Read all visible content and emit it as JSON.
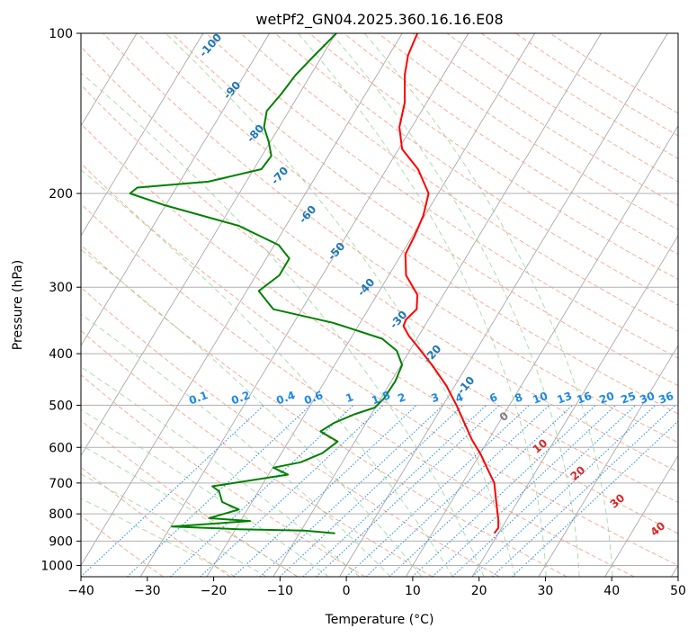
{
  "chart_data": {
    "type": "line",
    "title": "wetPf2_GN04.2025.360.16.16.E08",
    "xlabel": "Temperature (°C)",
    "ylabel": "Pressure (hPa)",
    "xlim": [
      -40,
      50
    ],
    "ylim": [
      1050,
      100
    ],
    "y_scale": "log",
    "x_ticks": [
      "−40",
      "−30",
      "−20",
      "−10",
      "0",
      "10",
      "20",
      "30",
      "40",
      "50"
    ],
    "x_tick_values": [
      -40,
      -30,
      -20,
      -10,
      0,
      10,
      20,
      30,
      40,
      50
    ],
    "y_ticks": [
      "100",
      "200",
      "300",
      "400",
      "500",
      "600",
      "700",
      "800",
      "900",
      "1000"
    ],
    "y_tick_values": [
      100,
      200,
      300,
      400,
      500,
      600,
      700,
      800,
      900,
      1000
    ],
    "grid": true,
    "series": [
      {
        "color": "#ff0000",
        "points": [
          [
            22.3,
            870
          ],
          [
            22.9,
            850
          ],
          [
            22.9,
            820
          ],
          [
            22.6,
            760
          ],
          [
            22.3,
            700
          ],
          [
            21.3,
            660
          ],
          [
            20.3,
            620
          ],
          [
            18.9,
            580
          ],
          [
            17.8,
            540
          ],
          [
            16.6,
            500
          ],
          [
            15.1,
            460
          ],
          [
            12.9,
            420
          ],
          [
            10.9,
            390
          ],
          [
            9.4,
            370
          ],
          [
            8.6,
            355
          ],
          [
            9.0,
            345
          ],
          [
            10.6,
            330
          ],
          [
            10.7,
            310
          ],
          [
            9.0,
            285
          ],
          [
            8.9,
            260
          ],
          [
            10.3,
            240
          ],
          [
            11.6,
            220
          ],
          [
            12.4,
            200
          ],
          [
            10.8,
            180
          ],
          [
            8.4,
            165
          ],
          [
            8.0,
            150
          ],
          [
            8.8,
            135
          ],
          [
            8.8,
            120
          ],
          [
            9.3,
            110
          ],
          [
            10.7,
            100
          ]
        ]
      },
      {
        "color": "#008000",
        "points": [
          [
            -1.7,
            870
          ],
          [
            -6.3,
            860
          ],
          [
            -16.3,
            855
          ],
          [
            -26.3,
            845
          ],
          [
            -14.5,
            825
          ],
          [
            -20.7,
            815
          ],
          [
            -16.2,
            785
          ],
          [
            -18.7,
            760
          ],
          [
            -19.2,
            725
          ],
          [
            -20.2,
            710
          ],
          [
            -8.8,
            675
          ],
          [
            -11.0,
            655
          ],
          [
            -6.9,
            640
          ],
          [
            -3.6,
            615
          ],
          [
            -1.3,
            585
          ],
          [
            -3.9,
            560
          ],
          [
            -1.9,
            540
          ],
          [
            1.2,
            520
          ],
          [
            4.3,
            505
          ],
          [
            5.7,
            485
          ],
          [
            7.4,
            450
          ],
          [
            8.4,
            420
          ],
          [
            7.6,
            395
          ],
          [
            5.4,
            375
          ],
          [
            -2.0,
            350
          ],
          [
            -11.0,
            330
          ],
          [
            -12.3,
            315
          ],
          [
            -13.2,
            305
          ],
          [
            -10.1,
            285
          ],
          [
            -8.6,
            265
          ],
          [
            -10.2,
            250
          ],
          [
            -16.2,
            230
          ],
          [
            -27.6,
            210
          ],
          [
            -32.6,
            200
          ],
          [
            -31.5,
            195
          ],
          [
            -20.8,
            190
          ],
          [
            -12.8,
            180
          ],
          [
            -11.3,
            170
          ],
          [
            -11.7,
            160
          ],
          [
            -12.4,
            150
          ],
          [
            -12.0,
            140
          ],
          [
            -9.8,
            130
          ],
          [
            -7.7,
            120
          ],
          [
            -4.8,
            110
          ],
          [
            -1.5,
            100
          ]
        ]
      }
    ],
    "annotations": {
      "isotherm_labels_dark_blue": [
        "-100",
        "-90",
        "-80",
        "-70",
        "-60",
        "-50",
        "-40",
        "-30",
        "-20",
        "-10"
      ],
      "mixing_ratio_labels_blue": [
        "0.1",
        "0.2",
        "0.4",
        "0.6",
        "1",
        "1.5",
        "2",
        "3",
        "4",
        "6",
        "8",
        "10",
        "13",
        "16",
        "20",
        "25",
        "30",
        "36"
      ],
      "gray_label": "0",
      "red_labels": [
        "10",
        "20",
        "30",
        "40"
      ]
    },
    "colors": {
      "temperature": "#ff0000",
      "dewpoint": "#008000",
      "isotherm": "#a0a0a0",
      "dry_adiabat": "#f6a58c",
      "moist_adiabat": "#8fd08f",
      "mixing_ratio": "#1e88e5",
      "isotherm_label": "#1f77b4",
      "red_label": "#d62728",
      "gray_label": "#808080"
    }
  }
}
